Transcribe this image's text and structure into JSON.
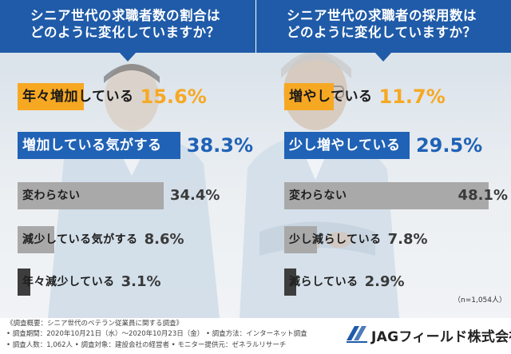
{
  "questions": {
    "left_line1": "シニア世代の求職者数の割合は",
    "left_line2": "どのように変化していますか？",
    "right_line1": "シニア世代の求職者の採用数は",
    "right_line2": "どのように変化していますか？"
  },
  "colors": {
    "header": "#1f5ba8",
    "orange": "#f7a823",
    "blue": "#2062b6",
    "gray": "#a9a9a9",
    "dark": "#3d3d3d"
  },
  "chart_data": [
    {
      "type": "bar",
      "orientation": "horizontal",
      "title": "シニア世代の求職者数の割合はどのように変化していますか？",
      "categories": [
        "年々増加している",
        "増加している気がする",
        "変わらない",
        "減少している気がする",
        "年々減少している"
      ],
      "values": [
        15.6,
        38.3,
        34.4,
        8.6,
        3.1
      ],
      "labels": [
        "15.6%",
        "38.3%",
        "34.4%",
        "8.6%",
        "3.1%"
      ],
      "unit": "%",
      "xlim": [
        0,
        50
      ]
    },
    {
      "type": "bar",
      "orientation": "horizontal",
      "title": "シニア世代の求職者の採用数はどのように変化していますか？",
      "categories": [
        "増やしている",
        "少し増やしている",
        "変わらない",
        "少し減らしている",
        "減らしている"
      ],
      "values": [
        11.7,
        29.5,
        48.1,
        7.8,
        2.9
      ],
      "labels": [
        "11.7%",
        "29.5%",
        "48.1%",
        "7.8%",
        "2.9%"
      ],
      "unit": "%",
      "xlim": [
        0,
        50
      ]
    }
  ],
  "sample_note": "（n=1,054人）",
  "footer": {
    "line1": "《調査概要：シニア世代のベテラン従業員に関する調査》",
    "line2": "• 調査期間：2020年10月21日（水）～2020年10月23日（金） • 調査方法：インターネット調査",
    "line3": "• 調査人数：1,062人 • 調査対象：建設会社の経営者 • モニター提供元：ゼネラルリサーチ"
  },
  "logo": {
    "name": "JAGフィールド株式会社"
  }
}
